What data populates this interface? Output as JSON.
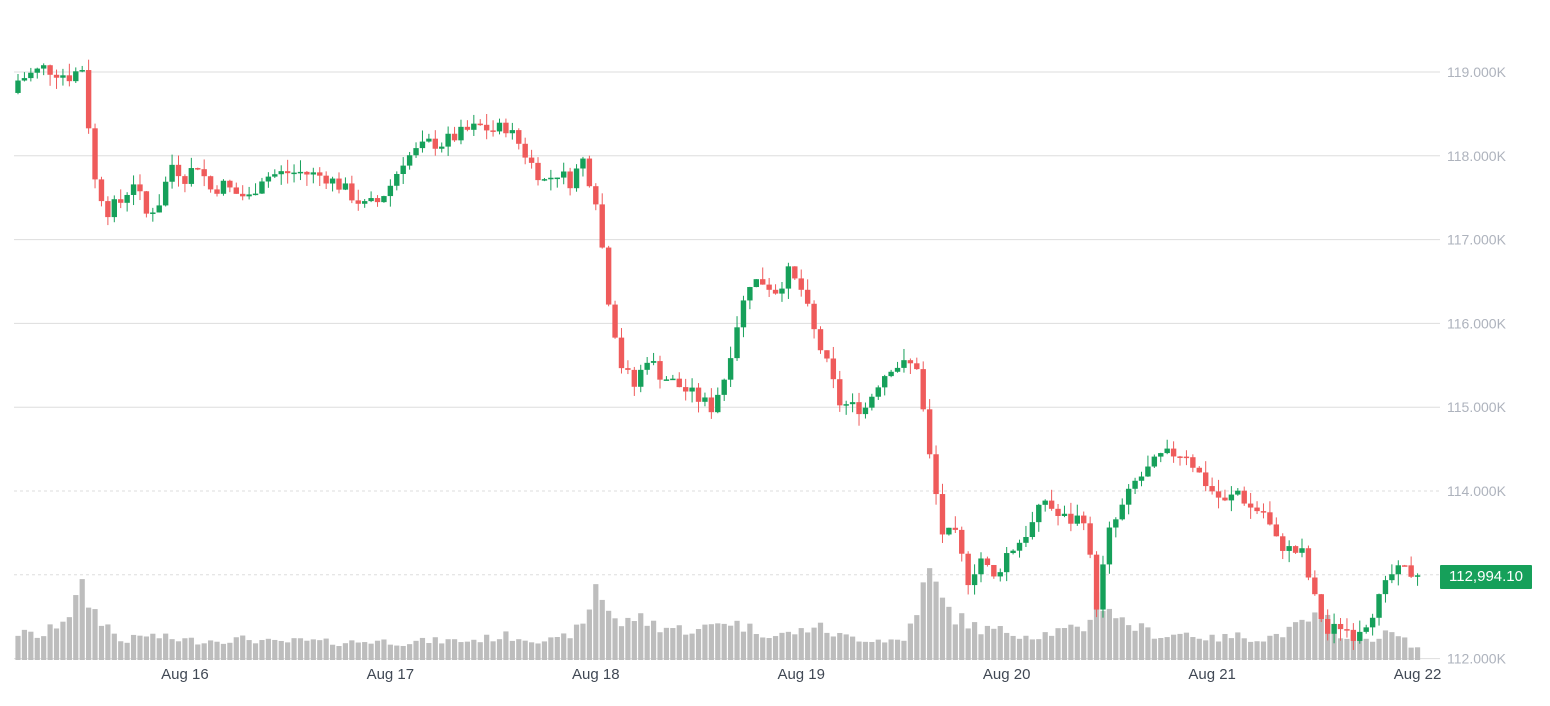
{
  "colors": {
    "up": "#16a05a",
    "down": "#ef5b5b",
    "volume": "#bdbdbd",
    "grid": "#dddddd",
    "axis_text": "#aeb3bd"
  },
  "current_price_label": "112,994.10",
  "chart_data": {
    "type": "candlestick",
    "title": "",
    "xlabel": "",
    "ylabel": "",
    "ylim": [
      112000,
      119400
    ],
    "grid": true,
    "y_ticks": [
      {
        "value": 119000,
        "label": "119.000K"
      },
      {
        "value": 118000,
        "label": "118.000K"
      },
      {
        "value": 117000,
        "label": "117.000K"
      },
      {
        "value": 116000,
        "label": "116.000K"
      },
      {
        "value": 115000,
        "label": "115.000K"
      },
      {
        "value": 114000,
        "label": "114.000K"
      },
      {
        "value": 112000,
        "label": "112.000K"
      }
    ],
    "dashed_levels": [
      114000,
      113000
    ],
    "x_ticks": [
      {
        "index": 26,
        "label": "Aug 16"
      },
      {
        "index": 58,
        "label": "Aug 17"
      },
      {
        "index": 90,
        "label": "Aug 18"
      },
      {
        "index": 122,
        "label": "Aug 19"
      },
      {
        "index": 154,
        "label": "Aug 20"
      },
      {
        "index": 186,
        "label": "Aug 21"
      },
      {
        "index": 218,
        "label": "Aug 22"
      }
    ],
    "current_price": 112994.1,
    "keypoints": [
      [
        0,
        118900
      ],
      [
        4,
        119050
      ],
      [
        8,
        118950
      ],
      [
        10,
        119050
      ],
      [
        12,
        117700
      ],
      [
        14,
        117350
      ],
      [
        16,
        117450
      ],
      [
        18,
        117700
      ],
      [
        20,
        117300
      ],
      [
        22,
        117450
      ],
      [
        24,
        117900
      ],
      [
        26,
        117750
      ],
      [
        28,
        117900
      ],
      [
        30,
        117600
      ],
      [
        32,
        117650
      ],
      [
        34,
        117550
      ],
      [
        36,
        117500
      ],
      [
        38,
        117750
      ],
      [
        42,
        117800
      ],
      [
        44,
        117800
      ],
      [
        48,
        117750
      ],
      [
        50,
        117650
      ],
      [
        54,
        117400
      ],
      [
        56,
        117450
      ],
      [
        58,
        117650
      ],
      [
        60,
        117950
      ],
      [
        64,
        118150
      ],
      [
        66,
        118150
      ],
      [
        70,
        118300
      ],
      [
        72,
        118350
      ],
      [
        74,
        118300
      ],
      [
        76,
        118350
      ],
      [
        78,
        118150
      ],
      [
        80,
        117900
      ],
      [
        82,
        117700
      ],
      [
        84,
        117800
      ],
      [
        86,
        117700
      ],
      [
        88,
        117950
      ],
      [
        90,
        117500
      ],
      [
        92,
        116300
      ],
      [
        94,
        115500
      ],
      [
        96,
        115250
      ],
      [
        98,
        115600
      ],
      [
        100,
        115400
      ],
      [
        104,
        115200
      ],
      [
        106,
        115100
      ],
      [
        108,
        115000
      ],
      [
        110,
        115350
      ],
      [
        112,
        116000
      ],
      [
        114,
        116500
      ],
      [
        116,
        116500
      ],
      [
        118,
        116400
      ],
      [
        120,
        116600
      ],
      [
        122,
        116400
      ],
      [
        124,
        115900
      ],
      [
        126,
        115500
      ],
      [
        128,
        115050
      ],
      [
        130,
        115000
      ],
      [
        132,
        115000
      ],
      [
        134,
        115300
      ],
      [
        136,
        115500
      ],
      [
        140,
        115500
      ],
      [
        142,
        114400
      ],
      [
        144,
        113500
      ],
      [
        146,
        113450
      ],
      [
        148,
        112950
      ],
      [
        150,
        113200
      ],
      [
        152,
        112950
      ],
      [
        154,
        113250
      ],
      [
        156,
        113400
      ],
      [
        158,
        113600
      ],
      [
        160,
        113900
      ],
      [
        162,
        113700
      ],
      [
        164,
        113650
      ],
      [
        166,
        113700
      ],
      [
        168,
        112650
      ],
      [
        170,
        113500
      ],
      [
        172,
        113800
      ],
      [
        174,
        114100
      ],
      [
        176,
        114250
      ],
      [
        178,
        114400
      ],
      [
        180,
        114450
      ],
      [
        182,
        114450
      ],
      [
        184,
        114200
      ],
      [
        186,
        114000
      ],
      [
        188,
        113850
      ],
      [
        190,
        114000
      ],
      [
        192,
        113800
      ],
      [
        194,
        113750
      ],
      [
        196,
        113400
      ],
      [
        198,
        113300
      ],
      [
        200,
        113250
      ],
      [
        202,
        112700
      ],
      [
        204,
        112300
      ],
      [
        206,
        112400
      ],
      [
        208,
        112300
      ],
      [
        210,
        112450
      ],
      [
        212,
        112700
      ],
      [
        214,
        113000
      ],
      [
        216,
        113050
      ],
      [
        218,
        112994.1
      ]
    ],
    "volume_profile": [
      [
        0,
        0.28
      ],
      [
        4,
        0.25
      ],
      [
        8,
        0.5
      ],
      [
        10,
        0.72
      ],
      [
        12,
        0.5
      ],
      [
        14,
        0.35
      ],
      [
        16,
        0.2
      ],
      [
        18,
        0.22
      ],
      [
        20,
        0.26
      ],
      [
        24,
        0.22
      ],
      [
        28,
        0.2
      ],
      [
        36,
        0.22
      ],
      [
        40,
        0.18
      ],
      [
        44,
        0.2
      ],
      [
        50,
        0.18
      ],
      [
        56,
        0.2
      ],
      [
        60,
        0.18
      ],
      [
        64,
        0.2
      ],
      [
        70,
        0.2
      ],
      [
        76,
        0.25
      ],
      [
        80,
        0.22
      ],
      [
        84,
        0.2
      ],
      [
        88,
        0.35
      ],
      [
        90,
        0.78
      ],
      [
        92,
        0.55
      ],
      [
        94,
        0.35
      ],
      [
        96,
        0.45
      ],
      [
        100,
        0.35
      ],
      [
        106,
        0.3
      ],
      [
        110,
        0.42
      ],
      [
        114,
        0.33
      ],
      [
        118,
        0.25
      ],
      [
        122,
        0.3
      ],
      [
        124,
        0.36
      ],
      [
        128,
        0.25
      ],
      [
        132,
        0.22
      ],
      [
        138,
        0.2
      ],
      [
        142,
        0.9
      ],
      [
        144,
        0.6
      ],
      [
        146,
        0.45
      ],
      [
        150,
        0.32
      ],
      [
        154,
        0.3
      ],
      [
        158,
        0.25
      ],
      [
        162,
        0.3
      ],
      [
        166,
        0.32
      ],
      [
        168,
        0.65
      ],
      [
        170,
        0.55
      ],
      [
        172,
        0.4
      ],
      [
        174,
        0.35
      ],
      [
        178,
        0.25
      ],
      [
        182,
        0.28
      ],
      [
        186,
        0.22
      ],
      [
        190,
        0.25
      ],
      [
        194,
        0.22
      ],
      [
        198,
        0.3
      ],
      [
        202,
        0.45
      ],
      [
        204,
        0.4
      ],
      [
        206,
        0.28
      ],
      [
        210,
        0.22
      ],
      [
        214,
        0.28
      ],
      [
        218,
        0.12
      ]
    ]
  }
}
